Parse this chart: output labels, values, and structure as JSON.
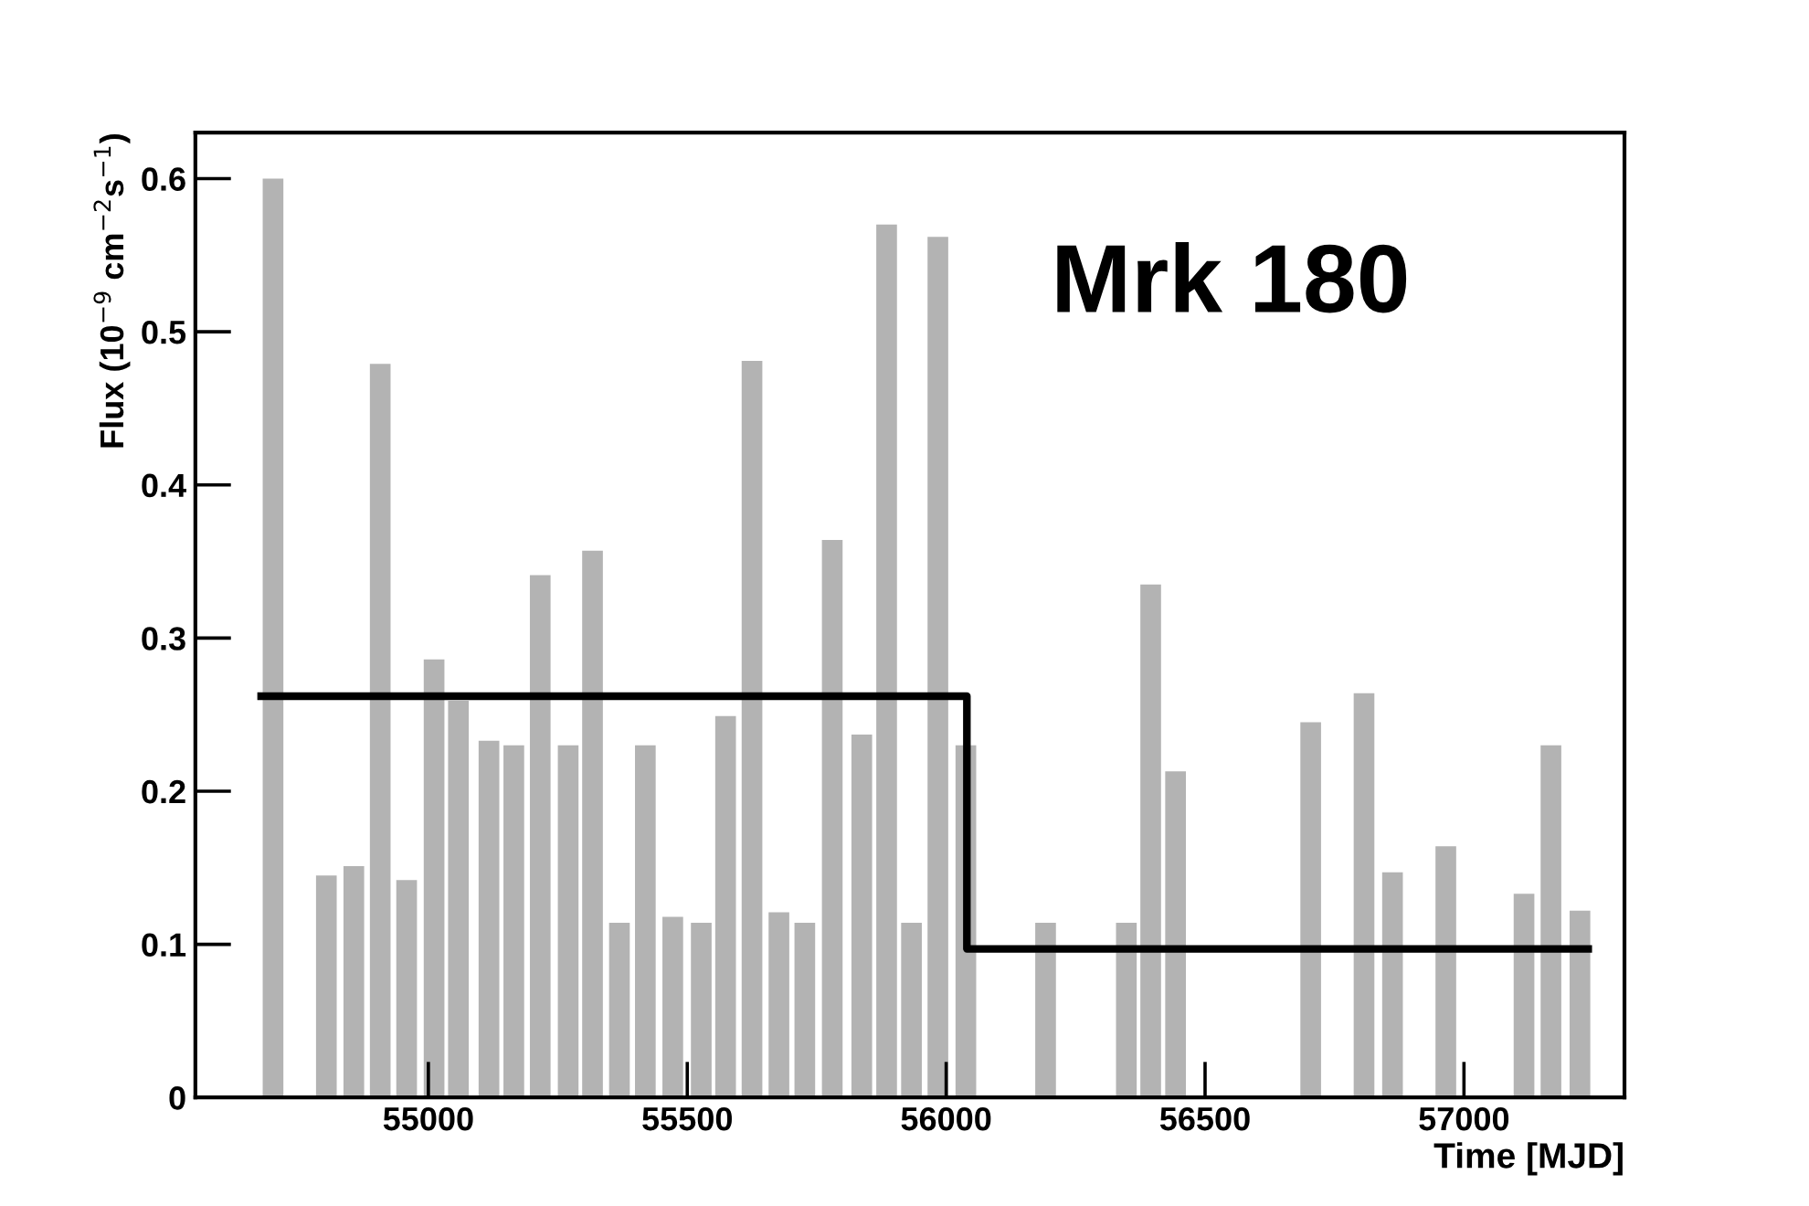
{
  "chart_data": {
    "type": "bar",
    "xlabel": "Time [MJD]",
    "ylabel": "Flux (10$^{−9}$ cm$^{−2}$s$^{−1}$)",
    "annotations": [
      "Mrk 180"
    ],
    "series": [
      {
        "color": "#b3b3b3",
        "x": [
          54700,
          54803,
          54856,
          54907,
          54958,
          55011,
          55058,
          55117,
          55165,
          55216,
          55270,
          55317,
          55369,
          55419,
          55472,
          55527,
          55574,
          55625,
          55677,
          55727,
          55780,
          55837,
          55885,
          55933,
          55984,
          56038,
          56192,
          56348,
          56395,
          56443,
          56704,
          56807,
          56862,
          56965,
          57116,
          57168,
          57224
        ],
        "values": [
          0.6,
          0.145,
          0.151,
          0.479,
          0.142,
          0.286,
          0.259,
          0.233,
          0.23,
          0.341,
          0.23,
          0.357,
          0.114,
          0.23,
          0.118,
          0.114,
          0.249,
          0.481,
          0.121,
          0.114,
          0.364,
          0.237,
          0.57,
          0.114,
          0.562,
          0.23,
          0.114,
          0.114,
          0.335,
          0.213,
          0.245,
          0.264,
          0.147,
          0.164,
          0.133,
          0.23,
          0.122
        ]
      },
      {
        "type": "step",
        "color": "#000000",
        "x": [
          54677,
          56040,
          57240
        ],
        "values": [
          0.262,
          0.097,
          0.097
        ]
      }
    ],
    "xlim": [
      54550,
      57310
    ],
    "ylim": [
      0,
      0.63
    ],
    "xticks": [
      55000,
      55500,
      56000,
      56500,
      57000
    ],
    "yticks": [
      0,
      0.1,
      0.2,
      0.3,
      0.4,
      0.5,
      0.6
    ],
    "grid": false,
    "legend": false
  }
}
